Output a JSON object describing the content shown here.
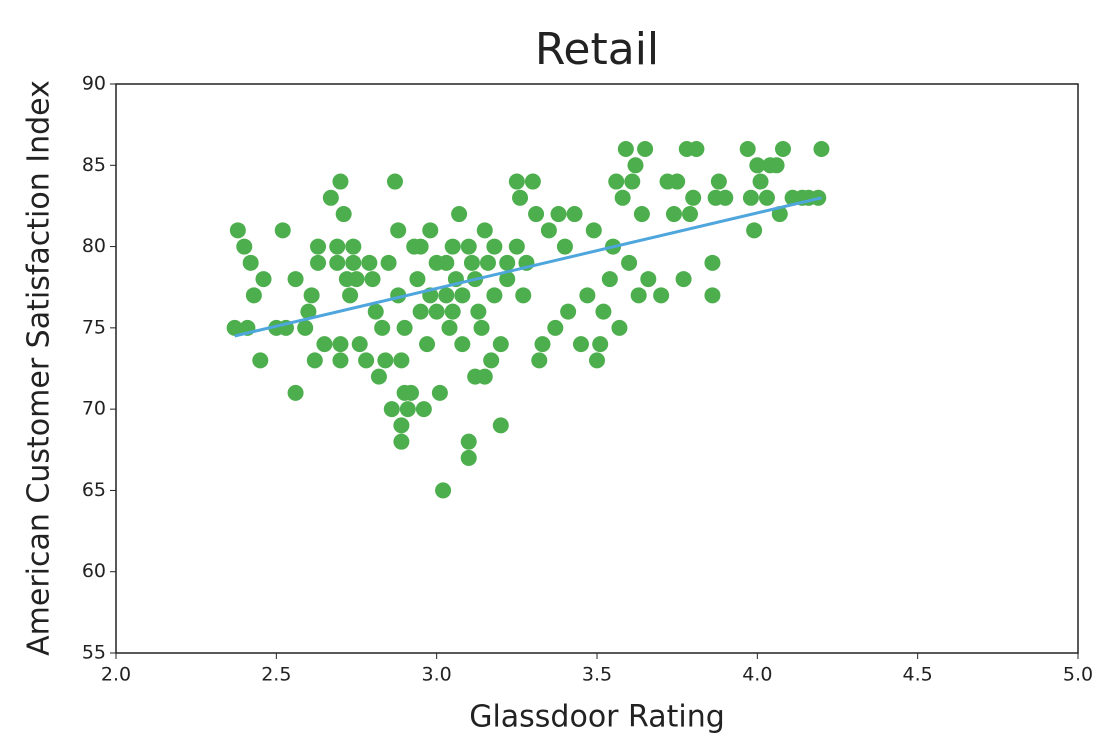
{
  "chart_data": {
    "type": "scatter",
    "title": "Retail",
    "x_label": "Glassdoor Rating",
    "y_label": "American Customer Satisfaction Index",
    "xlim": [
      2.0,
      5.0
    ],
    "ylim": [
      55,
      90
    ],
    "xticks": [
      {
        "value": 2.0,
        "label": "2.0"
      },
      {
        "value": 2.5,
        "label": "2.5"
      },
      {
        "value": 3.0,
        "label": "3.0"
      },
      {
        "value": 3.5,
        "label": "3.5"
      },
      {
        "value": 4.0,
        "label": "4.0"
      },
      {
        "value": 4.5,
        "label": "4.5"
      },
      {
        "value": 5.0,
        "label": "5.0"
      }
    ],
    "yticks": [
      55,
      60,
      65,
      70,
      75,
      80,
      85,
      90
    ],
    "grid": false,
    "series": [
      {
        "color": "#4cae4c",
        "x": [
          2.37,
          2.38,
          2.41,
          2.4,
          2.42,
          2.43,
          2.45,
          2.46,
          2.52,
          2.5,
          2.53,
          2.56,
          2.56,
          2.59,
          2.6,
          2.61,
          2.63,
          2.63,
          2.62,
          2.65,
          2.67,
          2.69,
          2.69,
          2.7,
          2.71,
          2.7,
          2.7,
          2.72,
          2.73,
          2.74,
          2.74,
          2.75,
          2.76,
          2.78,
          2.79,
          2.8,
          2.81,
          2.82,
          2.83,
          2.84,
          2.85,
          2.86,
          2.87,
          2.88,
          2.88,
          2.89,
          2.89,
          2.89,
          2.9,
          2.9,
          2.91,
          2.92,
          2.93,
          2.94,
          2.95,
          2.96,
          2.97,
          2.98,
          3.0,
          3.01,
          3.02,
          3.03,
          3.04,
          3.05,
          3.06,
          3.07,
          3.08,
          3.1,
          3.1,
          3.11,
          3.12,
          3.13,
          3.15,
          3.17,
          3.18,
          3.2,
          3.2,
          3.22,
          3.25,
          3.26,
          3.27,
          3.28,
          3.3,
          3.31,
          3.32,
          3.33,
          3.35,
          3.37,
          3.38,
          3.4,
          3.41,
          3.43,
          3.45,
          3.47,
          3.49,
          3.5,
          3.51,
          3.52,
          3.54,
          3.55,
          3.56,
          3.57,
          3.58,
          3.59,
          3.6,
          3.61,
          3.62,
          3.63,
          3.64,
          3.65,
          3.66,
          3.7,
          3.72,
          3.74,
          3.75,
          3.77,
          3.78,
          3.79,
          3.8,
          3.81,
          3.86,
          3.86,
          3.87,
          3.88,
          3.9,
          3.97,
          3.98,
          3.99,
          4.0,
          4.01,
          4.03,
          4.04,
          4.06,
          4.07,
          4.08,
          4.11,
          4.14,
          4.16,
          4.19,
          4.2,
          3.15,
          3.12,
          3.05,
          3.18,
          3.22,
          3.1,
          3.08,
          3.0,
          2.95,
          3.14,
          3.25,
          3.03,
          3.16,
          2.98
        ],
        "values": [
          75,
          81,
          75,
          80,
          79,
          77,
          73,
          78,
          81,
          75,
          75,
          71,
          78,
          75,
          76,
          77,
          80,
          79,
          73,
          74,
          83,
          80,
          79,
          84,
          82,
          74,
          73,
          78,
          77,
          80,
          79,
          78,
          74,
          73,
          79,
          78,
          76,
          72,
          75,
          73,
          79,
          70,
          84,
          81,
          77,
          69,
          68,
          73,
          71,
          75,
          70,
          71,
          80,
          78,
          76,
          70,
          74,
          81,
          79,
          71,
          65,
          77,
          75,
          80,
          78,
          82,
          74,
          67,
          68,
          79,
          72,
          76,
          72,
          73,
          80,
          69,
          74,
          78,
          84,
          83,
          77,
          79,
          84,
          82,
          73,
          74,
          81,
          75,
          82,
          80,
          76,
          82,
          74,
          77,
          81,
          73,
          74,
          76,
          78,
          80,
          84,
          75,
          83,
          86,
          79,
          84,
          85,
          77,
          82,
          86,
          78,
          77,
          84,
          82,
          84,
          78,
          86,
          82,
          83,
          86,
          79,
          77,
          83,
          84,
          83,
          86,
          83,
          81,
          85,
          84,
          83,
          85,
          85,
          82,
          86,
          83,
          83,
          83,
          83,
          86,
          81,
          78,
          76,
          77,
          79,
          80,
          77,
          76,
          80,
          75,
          80,
          79,
          79,
          77
        ]
      }
    ],
    "trend": {
      "color": "#4ea6dc",
      "x": [
        2.37,
        4.2
      ],
      "y": [
        74.5,
        83
      ]
    }
  }
}
